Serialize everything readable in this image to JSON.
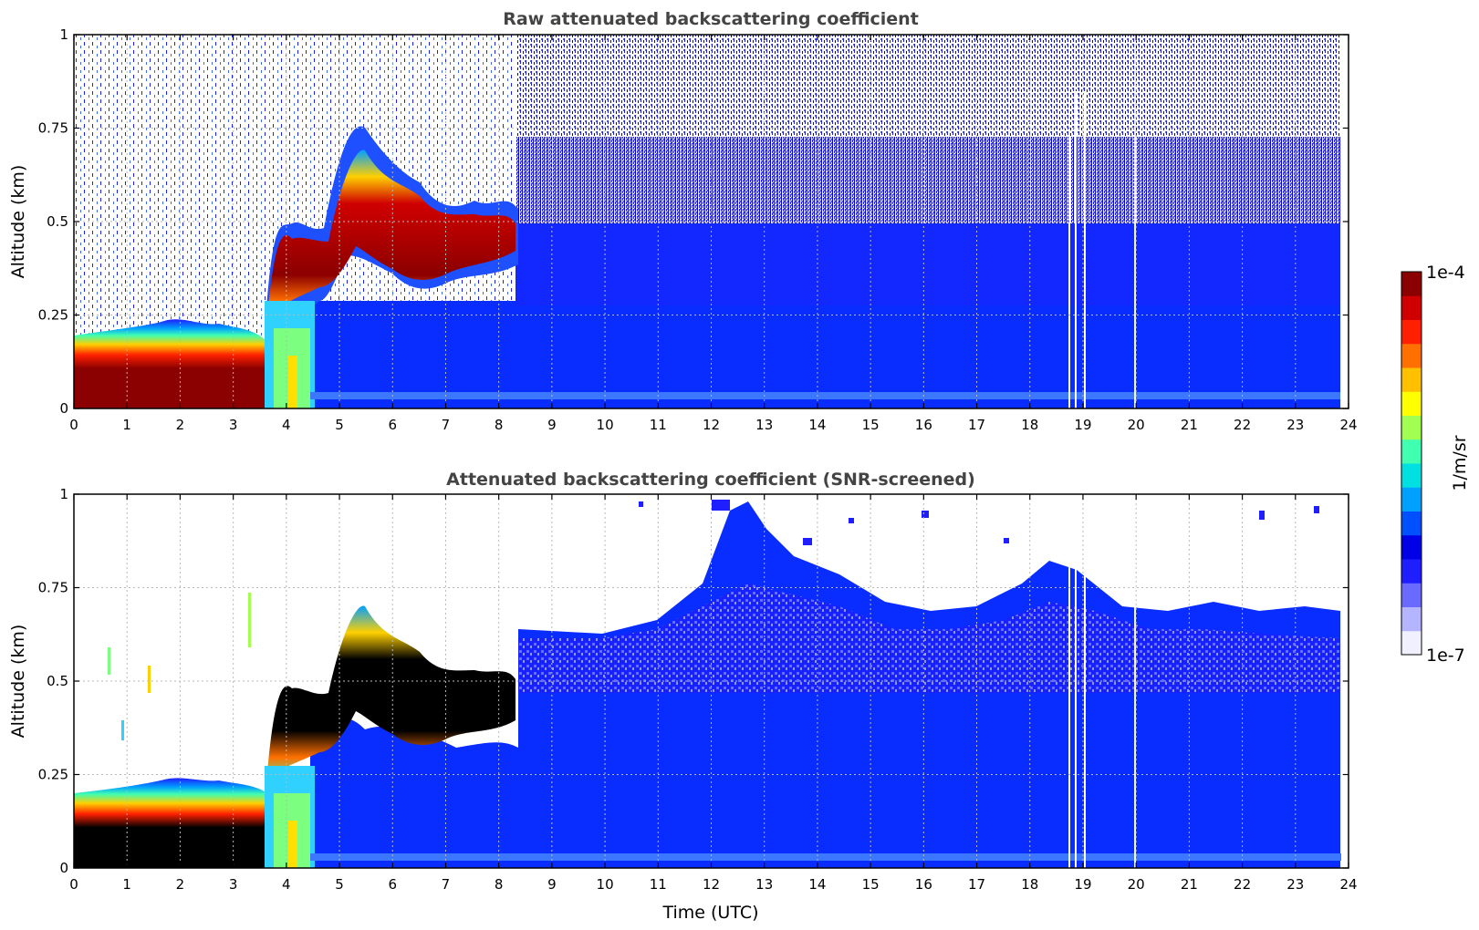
{
  "chart_data": [
    {
      "type": "heatmap",
      "title": "Raw attenuated backscattering coefficient",
      "xlabel": "",
      "ylabel": "Altitude (km)",
      "xlim": [
        0,
        24
      ],
      "ylim": [
        0,
        1
      ],
      "x_ticks": [
        "0",
        "1",
        "2",
        "3",
        "4",
        "5",
        "6",
        "7",
        "8",
        "9",
        "10",
        "11",
        "12",
        "13",
        "14",
        "15",
        "16",
        "17",
        "18",
        "19",
        "20",
        "21",
        "22",
        "23",
        "24"
      ],
      "y_ticks": [
        "0",
        "0.25",
        "0.5",
        "0.75",
        "1"
      ],
      "grid": true,
      "layers": [
        {
          "name": "",
          "x_start": 0.0,
          "x_end": 8.4,
          "y_bottom": 0.0,
          "y_top": 0.08
        },
        {
          "name": "",
          "x_start": 0.0,
          "x_end": 3.6,
          "y_bottom": 0.0,
          "y_top": 0.15
        },
        {
          "name": "",
          "x_start": 3.7,
          "x_end": 4.9,
          "y_bottom": 0.25,
          "y_top": 0.45
        },
        {
          "name": "",
          "x_start": 4.9,
          "x_end": 6.2,
          "y_bottom": 0.35,
          "y_top": 0.72
        },
        {
          "name": "",
          "x_start": 6.2,
          "x_end": 8.4,
          "y_bottom": 0.35,
          "y_top": 0.55
        }
      ],
      "clear_air_top_km": 1.0,
      "data_end_utc": 23.8,
      "gaps_utc": [
        18.8,
        18.9,
        19.05,
        19.9
      ],
      "values_range": [
        1e-07,
        0.0001
      ]
    },
    {
      "type": "heatmap",
      "title": "Attenuated backscattering coefficient (SNR-screened)",
      "xlabel": "Time (UTC)",
      "ylabel": "Altitude (km)",
      "xlim": [
        0,
        24
      ],
      "ylim": [
        0,
        1
      ],
      "x_ticks": [
        "0",
        "1",
        "2",
        "3",
        "4",
        "5",
        "6",
        "7",
        "8",
        "9",
        "10",
        "11",
        "12",
        "13",
        "14",
        "15",
        "16",
        "17",
        "18",
        "19",
        "20",
        "21",
        "22",
        "23",
        "24"
      ],
      "y_ticks": [
        "0",
        "0.25",
        "0.5",
        "0.75",
        "1"
      ],
      "grid": true,
      "boundary_layer_top_km": [
        {
          "t": 8.4,
          "z": 0.62
        },
        {
          "t": 10.0,
          "z": 0.62
        },
        {
          "t": 11.0,
          "z": 0.68
        },
        {
          "t": 12.0,
          "z": 0.85
        },
        {
          "t": 12.5,
          "z": 1.0
        },
        {
          "t": 13.0,
          "z": 0.85
        },
        {
          "t": 14.0,
          "z": 0.78
        },
        {
          "t": 15.0,
          "z": 0.72
        },
        {
          "t": 16.0,
          "z": 0.7
        },
        {
          "t": 17.0,
          "z": 0.72
        },
        {
          "t": 18.0,
          "z": 0.8
        },
        {
          "t": 19.0,
          "z": 0.78
        },
        {
          "t": 20.0,
          "z": 0.7
        },
        {
          "t": 21.0,
          "z": 0.7
        },
        {
          "t": 22.0,
          "z": 0.72
        },
        {
          "t": 23.0,
          "z": 0.7
        },
        {
          "t": 23.8,
          "z": 0.68
        }
      ],
      "data_end_utc": 23.8,
      "gaps_utc": [
        18.8,
        18.9,
        19.05,
        19.9
      ],
      "values_range": [
        1e-07,
        0.0001
      ]
    }
  ],
  "colorbar": {
    "label": "1/m/sr",
    "max_label": "1e-4",
    "min_label": "1e-7",
    "colors": [
      "#f0f0ff",
      "#b4b4ff",
      "#6a6aff",
      "#1e1eff",
      "#0000e6",
      "#0050ff",
      "#00a0ff",
      "#00e0e0",
      "#40ffb0",
      "#a0ff50",
      "#ffff00",
      "#ffc000",
      "#ff7000",
      "#ff2000",
      "#d00000",
      "#8b0000"
    ]
  }
}
